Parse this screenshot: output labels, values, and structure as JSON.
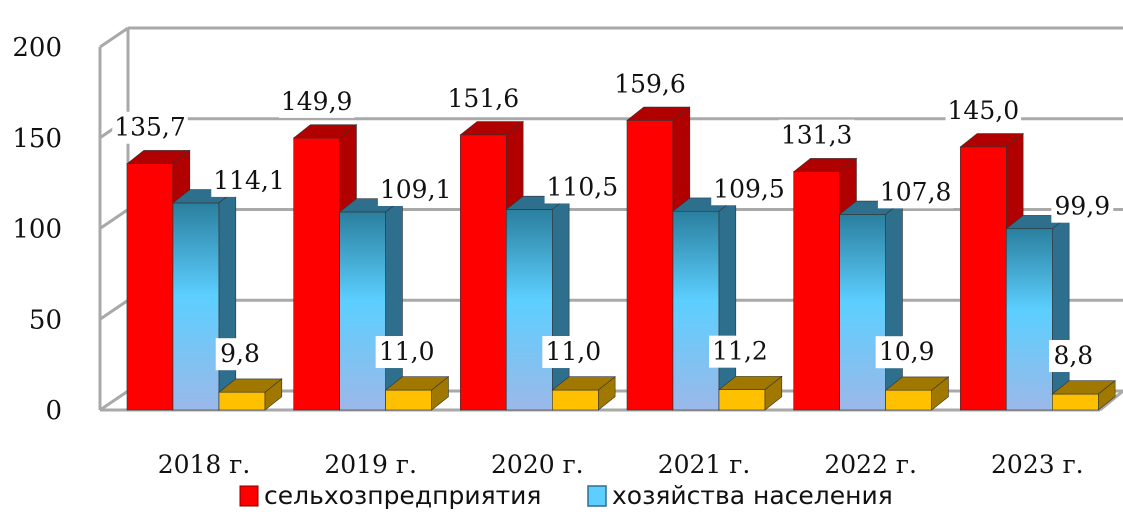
{
  "chart_data": {
    "type": "bar",
    "categories": [
      "2018 г.",
      "2019 г.",
      "2020 г.",
      "2021 г.",
      "2022 г.",
      "2023 г."
    ],
    "series": [
      {
        "name": "сельхозпредприятия",
        "values": [
          135.7,
          149.9,
          151.6,
          159.6,
          131.3,
          145.0
        ],
        "labels": [
          "135,7",
          "149,9",
          "151,6",
          "159,6",
          "131,3",
          "145,0"
        ],
        "color": "#ff0000",
        "dark": "#b00000"
      },
      {
        "name": "хозяйства населения",
        "values": [
          114.1,
          109.1,
          110.5,
          109.5,
          107.8,
          99.9
        ],
        "labels": [
          "114,1",
          "109,1",
          "110,5",
          "109,5",
          "107,8",
          "99,9"
        ],
        "color": "#5ccfff",
        "dark": "#2f6f8e"
      },
      {
        "name": "",
        "values": [
          9.8,
          11.0,
          11.0,
          11.2,
          10.9,
          8.8
        ],
        "labels": [
          "9,8",
          "11,0",
          "11,0",
          "11,2",
          "10,9",
          "8,8"
        ],
        "color": "#ffc000",
        "dark": "#a07800"
      }
    ],
    "yticks": [
      "0",
      "50",
      "100",
      "150",
      "200"
    ],
    "ylim": [
      0,
      200
    ],
    "grid": true,
    "legend_position": "bottom",
    "style": "3d-bar"
  }
}
